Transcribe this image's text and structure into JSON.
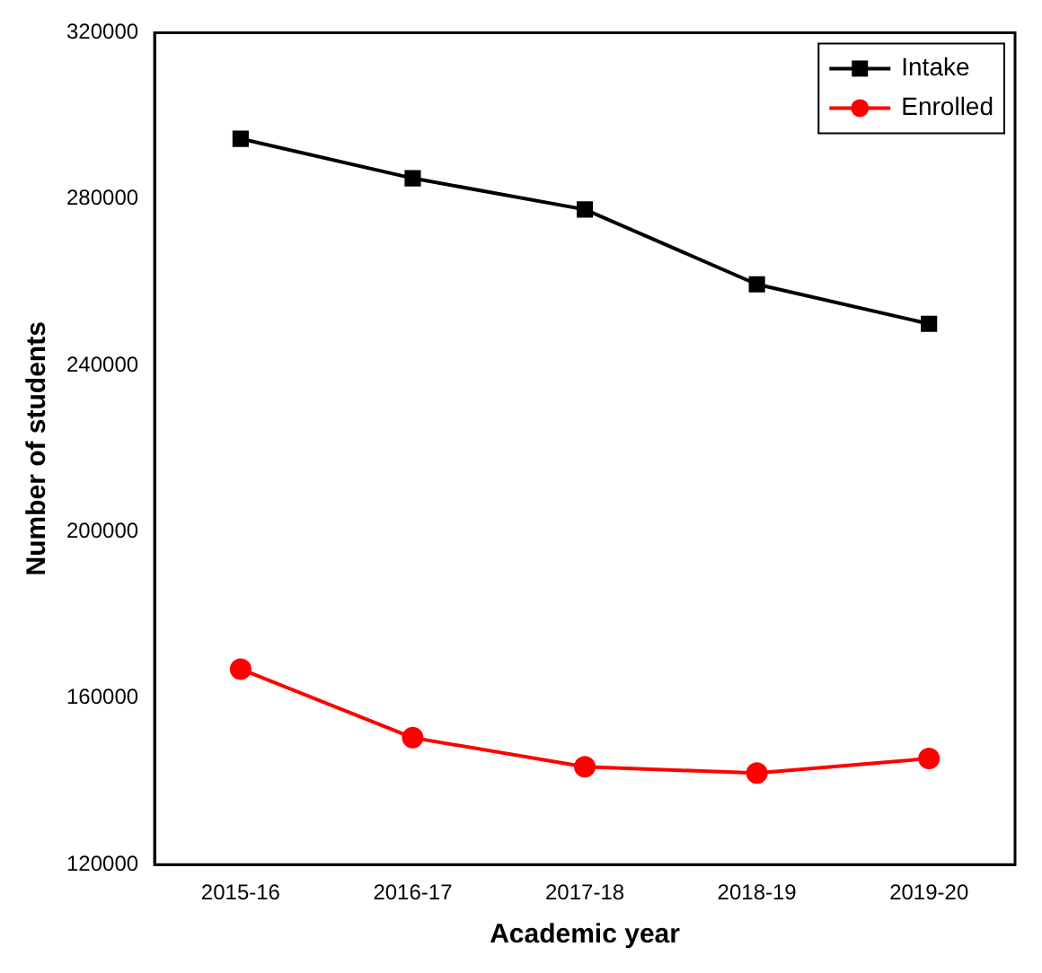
{
  "chart_data": {
    "type": "line",
    "xlabel": "Academic year",
    "ylabel": "Number of students",
    "categories": [
      "2015-16",
      "2016-17",
      "2017-18",
      "2018-19",
      "2019-20"
    ],
    "series": [
      {
        "name": "Intake",
        "color": "#000000",
        "values": [
          294500,
          285000,
          277500,
          259500,
          250000
        ],
        "marker": "square"
      },
      {
        "name": "Enrolled",
        "color": "#ff0000",
        "values": [
          167000,
          150500,
          143500,
          142000,
          145500
        ],
        "marker": "circle"
      }
    ],
    "ylim": [
      120000,
      320000
    ],
    "yticks": [
      120000,
      160000,
      200000,
      240000,
      280000,
      320000
    ],
    "grid": false,
    "legend": "top right",
    "line_style": "solid"
  }
}
